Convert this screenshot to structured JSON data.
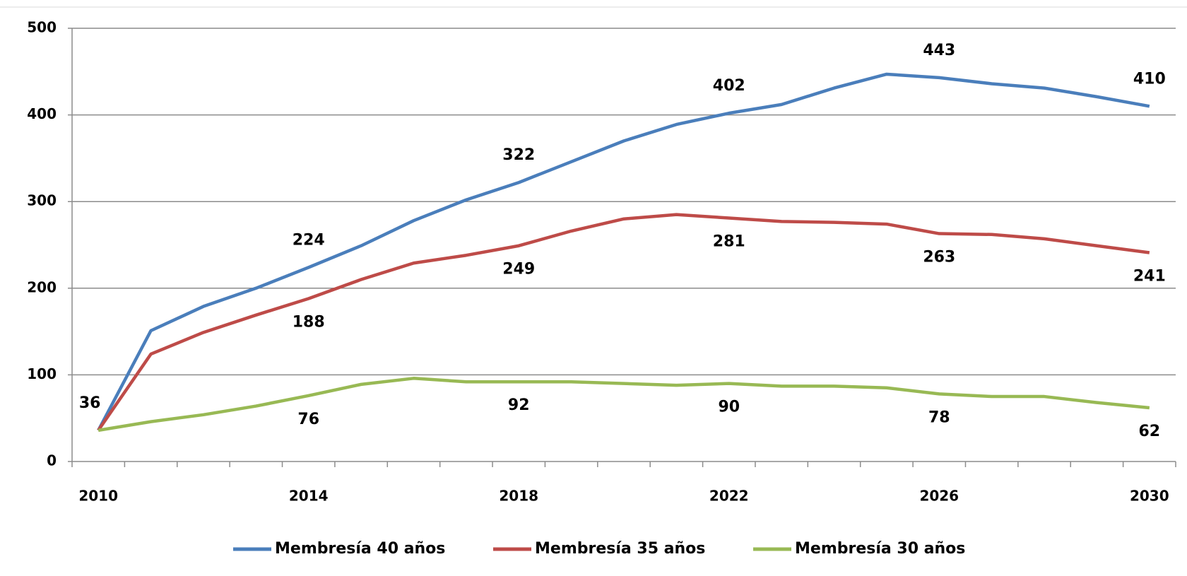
{
  "chart_data": {
    "type": "line",
    "categories": [
      "2010",
      null,
      null,
      null,
      "2014",
      null,
      null,
      null,
      "2018",
      null,
      null,
      null,
      "2022",
      null,
      null,
      null,
      "2026",
      null,
      null,
      null,
      "2030"
    ],
    "series": [
      {
        "name": "Membresía 40 años",
        "color": "#4a7ebb",
        "values": [
          36,
          151,
          179,
          200,
          224,
          249,
          278,
          302,
          322,
          346,
          370,
          389,
          402,
          412,
          431,
          447,
          443,
          436,
          431,
          421,
          410
        ],
        "value_labels": [
          "36",
          null,
          null,
          null,
          "224",
          null,
          null,
          null,
          "322",
          null,
          null,
          null,
          "402",
          null,
          null,
          null,
          "443",
          null,
          null,
          null,
          "410"
        ]
      },
      {
        "name": "Membresía 35 años",
        "color": "#be4b48",
        "values": [
          36,
          124,
          149,
          169,
          188,
          210,
          229,
          238,
          249,
          266,
          280,
          285,
          281,
          277,
          276,
          274,
          263,
          262,
          257,
          249,
          241
        ],
        "value_labels": [
          null,
          null,
          null,
          null,
          "188",
          null,
          null,
          null,
          "249",
          null,
          null,
          null,
          "281",
          null,
          null,
          null,
          "263",
          null,
          null,
          null,
          "241"
        ]
      },
      {
        "name": "Membresía 30 años",
        "color": "#98b954",
        "values": [
          36,
          46,
          54,
          64,
          76,
          89,
          96,
          92,
          92,
          92,
          90,
          88,
          90,
          87,
          87,
          85,
          78,
          75,
          75,
          68,
          62
        ],
        "value_labels": [
          null,
          null,
          null,
          null,
          "76",
          null,
          null,
          null,
          "92",
          null,
          null,
          null,
          "90",
          null,
          null,
          null,
          "78",
          null,
          null,
          null,
          "62"
        ]
      }
    ],
    "ylim": [
      0,
      500
    ],
    "yticks": [
      0,
      100,
      200,
      300,
      400,
      500
    ],
    "grid": true
  }
}
